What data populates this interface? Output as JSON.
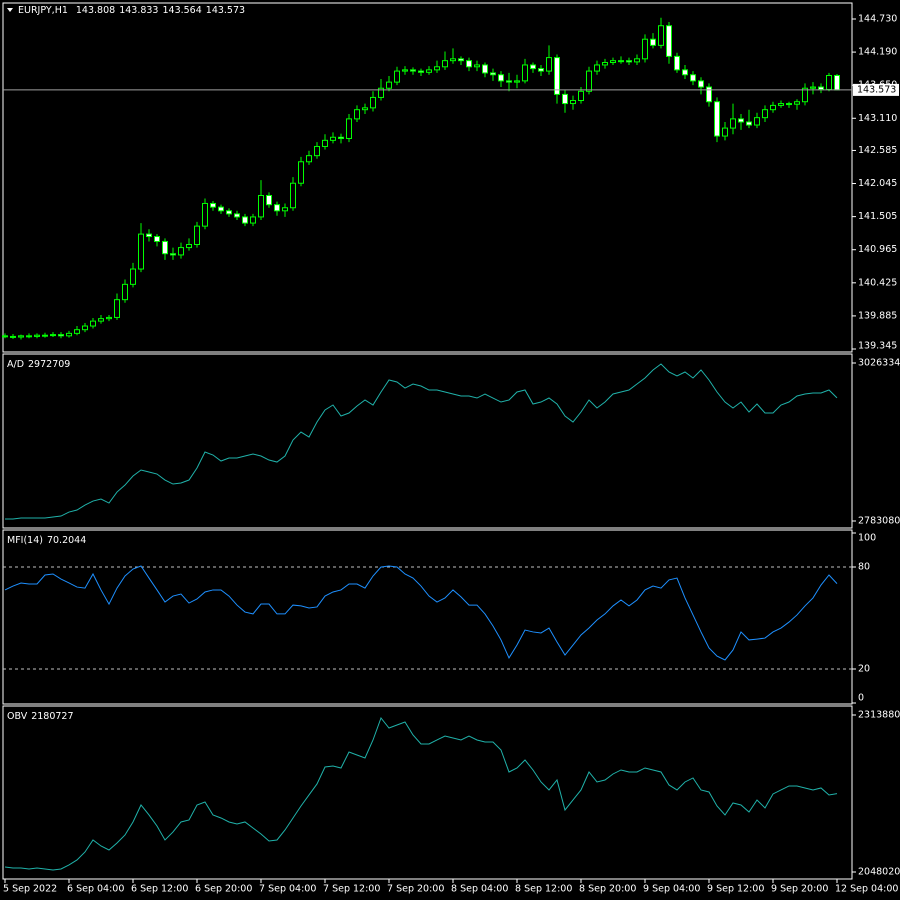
{
  "chart_data": [
    {
      "type": "candlestick",
      "title": "EURJPY,H1",
      "ylim": [
        139.296,
        144.991
      ],
      "yticks": [
        {
          "value": 144.73,
          "label": "144.730"
        },
        {
          "value": 144.19,
          "label": "144.190"
        },
        {
          "value": 143.65,
          "label": "143.650"
        },
        {
          "value": 143.11,
          "label": "143.110"
        },
        {
          "value": 142.585,
          "label": "142.585"
        },
        {
          "value": 142.045,
          "label": "142.045"
        },
        {
          "value": 141.505,
          "label": "141.505"
        },
        {
          "value": 140.965,
          "label": "140.965"
        },
        {
          "value": 140.425,
          "label": "140.425"
        },
        {
          "value": 139.885,
          "label": "139.885"
        },
        {
          "value": 139.345,
          "label": "139.345"
        }
      ],
      "color": "#00ff00",
      "bull_fill": "#000000",
      "bear_fill": "#ffffff",
      "price_line_color": "#a0a0a0",
      "categories": [
        "5 Sep 2022",
        null,
        null,
        null,
        null,
        null,
        null,
        null,
        "6 Sep 04:00",
        null,
        null,
        null,
        null,
        null,
        null,
        null,
        "6 Sep 12:00",
        null,
        null,
        null,
        null,
        null,
        null,
        null,
        "6 Sep 20:00",
        null,
        null,
        null,
        null,
        null,
        null,
        null,
        "7 Sep 04:00",
        null,
        null,
        null,
        null,
        null,
        null,
        null,
        "7 Sep 12:00",
        null,
        null,
        null,
        null,
        null,
        null,
        null,
        "7 Sep 20:00",
        null,
        null,
        null,
        null,
        null,
        null,
        null,
        "8 Sep 04:00",
        null,
        null,
        null,
        null,
        null,
        null,
        null,
        "8 Sep 12:00",
        null,
        null,
        null,
        null,
        null,
        null,
        null,
        "8 Sep 20:00",
        null,
        null,
        null,
        null,
        null,
        null,
        null,
        "9 Sep 04:00",
        null,
        null,
        null,
        null,
        null,
        null,
        null,
        "9 Sep 12:00",
        null,
        null,
        null,
        null,
        null,
        null,
        null,
        "9 Sep 20:00",
        null,
        null,
        null,
        null,
        null,
        null,
        null,
        "12 Sep 04:00"
      ],
      "candles": [
        [
          139.56,
          139.6,
          139.52,
          139.55
        ],
        [
          139.55,
          139.59,
          139.51,
          139.54
        ],
        [
          139.54,
          139.58,
          139.5,
          139.56
        ],
        [
          139.56,
          139.6,
          139.52,
          139.55
        ],
        [
          139.55,
          139.6,
          139.52,
          139.57
        ],
        [
          139.57,
          139.61,
          139.53,
          139.57
        ],
        [
          139.57,
          139.62,
          139.54,
          139.58
        ],
        [
          139.58,
          139.62,
          139.52,
          139.56
        ],
        [
          139.56,
          139.64,
          139.53,
          139.6
        ],
        [
          139.6,
          139.72,
          139.57,
          139.66
        ],
        [
          139.66,
          139.77,
          139.62,
          139.72
        ],
        [
          139.72,
          139.85,
          139.68,
          139.8
        ],
        [
          139.8,
          139.9,
          139.76,
          139.84
        ],
        [
          139.84,
          139.9,
          139.8,
          139.86
        ],
        [
          139.86,
          140.25,
          139.82,
          140.15
        ],
        [
          140.15,
          140.48,
          140.1,
          140.4
        ],
        [
          140.4,
          140.75,
          140.35,
          140.65
        ],
        [
          140.65,
          141.4,
          140.6,
          141.22
        ],
        [
          141.22,
          141.3,
          141.1,
          141.18
        ],
        [
          141.18,
          141.22,
          141.02,
          141.1
        ],
        [
          141.1,
          141.15,
          140.8,
          140.9
        ],
        [
          140.9,
          141.0,
          140.8,
          140.88
        ],
        [
          140.88,
          141.08,
          140.82,
          141.0
        ],
        [
          141.0,
          141.15,
          140.95,
          141.05
        ],
        [
          141.05,
          141.42,
          141.0,
          141.35
        ],
        [
          141.35,
          141.8,
          141.3,
          141.72
        ],
        [
          141.72,
          141.76,
          141.6,
          141.66
        ],
        [
          141.66,
          141.7,
          141.55,
          141.6
        ],
        [
          141.6,
          141.64,
          141.5,
          141.55
        ],
        [
          141.55,
          141.6,
          141.45,
          141.5
        ],
        [
          141.5,
          141.55,
          141.35,
          141.4
        ],
        [
          141.4,
          141.55,
          141.35,
          141.5
        ],
        [
          141.5,
          142.1,
          141.45,
          141.85
        ],
        [
          141.85,
          141.9,
          141.65,
          141.7
        ],
        [
          141.7,
          141.75,
          141.52,
          141.6
        ],
        [
          141.6,
          141.72,
          141.5,
          141.65
        ],
        [
          141.65,
          142.15,
          141.6,
          142.05
        ],
        [
          142.05,
          142.48,
          142.0,
          142.4
        ],
        [
          142.4,
          142.58,
          142.35,
          142.5
        ],
        [
          142.5,
          142.72,
          142.45,
          142.65
        ],
        [
          142.65,
          142.85,
          142.6,
          142.75
        ],
        [
          142.75,
          142.88,
          142.7,
          142.8
        ],
        [
          142.8,
          142.86,
          142.7,
          142.78
        ],
        [
          142.78,
          143.18,
          142.72,
          143.1
        ],
        [
          143.1,
          143.32,
          143.05,
          143.25
        ],
        [
          143.25,
          143.35,
          143.18,
          143.28
        ],
        [
          143.28,
          143.55,
          143.22,
          143.45
        ],
        [
          143.45,
          143.75,
          143.4,
          143.6
        ],
        [
          143.6,
          143.8,
          143.55,
          143.7
        ],
        [
          143.7,
          143.95,
          143.65,
          143.88
        ],
        [
          143.88,
          143.96,
          143.82,
          143.9
        ],
        [
          143.9,
          143.94,
          143.82,
          143.88
        ],
        [
          143.88,
          143.92,
          143.8,
          143.86
        ],
        [
          143.86,
          143.96,
          143.82,
          143.9
        ],
        [
          143.9,
          144.05,
          143.85,
          143.95
        ],
        [
          143.95,
          144.2,
          143.9,
          144.05
        ],
        [
          144.05,
          144.25,
          144.0,
          144.08
        ],
        [
          144.08,
          144.12,
          143.98,
          144.05
        ],
        [
          144.05,
          144.1,
          143.88,
          143.95
        ],
        [
          143.95,
          144.05,
          143.88,
          143.98
        ],
        [
          143.98,
          144.02,
          143.78,
          143.85
        ],
        [
          143.85,
          143.92,
          143.72,
          143.82
        ],
        [
          143.82,
          143.88,
          143.62,
          143.72
        ],
        [
          143.72,
          143.85,
          143.55,
          143.7
        ],
        [
          143.7,
          143.82,
          143.6,
          143.72
        ],
        [
          143.72,
          144.08,
          143.68,
          143.98
        ],
        [
          143.98,
          144.02,
          143.85,
          143.92
        ],
        [
          143.92,
          143.98,
          143.8,
          143.88
        ],
        [
          143.88,
          144.3,
          143.82,
          144.1
        ],
        [
          144.1,
          144.15,
          143.35,
          143.5
        ],
        [
          143.5,
          143.58,
          143.2,
          143.35
        ],
        [
          143.35,
          143.48,
          143.25,
          143.4
        ],
        [
          143.4,
          143.62,
          143.35,
          143.55
        ],
        [
          143.55,
          143.95,
          143.5,
          143.88
        ],
        [
          143.88,
          144.05,
          143.82,
          143.98
        ],
        [
          143.98,
          144.08,
          143.92,
          144.02
        ],
        [
          144.02,
          144.1,
          143.98,
          144.05
        ],
        [
          144.05,
          144.12,
          144.0,
          144.05
        ],
        [
          144.05,
          144.1,
          143.98,
          144.03
        ],
        [
          144.03,
          144.15,
          143.98,
          144.08
        ],
        [
          144.08,
          144.48,
          144.02,
          144.4
        ],
        [
          144.4,
          144.5,
          144.25,
          144.3
        ],
        [
          144.3,
          144.75,
          144.25,
          144.62
        ],
        [
          144.62,
          144.68,
          144.0,
          144.12
        ],
        [
          144.12,
          144.18,
          143.85,
          143.9
        ],
        [
          143.9,
          143.98,
          143.75,
          143.82
        ],
        [
          143.82,
          143.88,
          143.65,
          143.72
        ],
        [
          143.72,
          143.78,
          143.5,
          143.62
        ],
        [
          143.62,
          143.68,
          143.3,
          143.38
        ],
        [
          143.38,
          143.45,
          142.72,
          142.82
        ],
        [
          142.82,
          143.05,
          142.75,
          142.95
        ],
        [
          142.95,
          143.35,
          142.85,
          143.1
        ],
        [
          143.1,
          143.18,
          142.92,
          143.05
        ],
        [
          143.05,
          143.25,
          142.95,
          143.0
        ],
        [
          143.0,
          143.2,
          142.95,
          143.12
        ],
        [
          143.12,
          143.32,
          143.05,
          143.25
        ],
        [
          143.25,
          143.38,
          143.2,
          143.32
        ],
        [
          143.32,
          143.4,
          143.28,
          143.35
        ],
        [
          143.35,
          143.38,
          143.28,
          143.34
        ],
        [
          143.34,
          143.42,
          143.25,
          143.38
        ],
        [
          143.38,
          143.68,
          143.32,
          143.6
        ],
        [
          143.6,
          143.7,
          143.5,
          143.62
        ],
        [
          143.62,
          143.68,
          143.52,
          143.58
        ],
        [
          143.58,
          143.85,
          143.55,
          143.808
        ],
        [
          143.808,
          143.833,
          143.564,
          143.573
        ]
      ]
    },
    {
      "type": "line",
      "title": "A/D",
      "color": "#20b2aa",
      "ylim": [
        2783080,
        3026334
      ],
      "yticks": [
        3026334,
        2783080
      ],
      "values": [
        2786094,
        2786094,
        2787634,
        2787634,
        2787634,
        2787634,
        2789174,
        2790714,
        2796874,
        2799954,
        2807654,
        2813814,
        2816894,
        2810734,
        2827674,
        2838454,
        2852314,
        2861554,
        2858474,
        2855394,
        2846154,
        2839994,
        2841534,
        2846154,
        2864634,
        2889274,
        2884654,
        2875414,
        2880034,
        2880034,
        2883114,
        2886194,
        2883114,
        2876954,
        2873874,
        2883114,
        2907754,
        2920074,
        2912374,
        2935474,
        2953954,
        2961654,
        2944714,
        2949334,
        2960114,
        2969354,
        2961654,
        2981674,
        3000154,
        2997074,
        2987834,
        2993994,
        2990914,
        2984754,
        2984754,
        2981674,
        2978594,
        2975514,
        2975514,
        2972434,
        2978594,
        2972434,
        2966274,
        2969354,
        2981674,
        2984754,
        2963194,
        2966274,
        2972434,
        2963194,
        2944714,
        2935474,
        2950874,
        2969354,
        2957034,
        2966274,
        2978594,
        2981674,
        2984754,
        2993994,
        3003234,
        3015554,
        3024794,
        3012474,
        3006314,
        3012474,
        3003234,
        3015554,
        3000154,
        2981674,
        2966274,
        2957034,
        2966274,
        2950874,
        2963194,
        2949334,
        2949334,
        2961654,
        2966274,
        2975514,
        2978594,
        2980134,
        2980134,
        2984754,
        2972709
      ]
    },
    {
      "type": "line",
      "title": "MFI(14)",
      "color": "#1e90ff",
      "ylim": [
        0,
        100
      ],
      "yticks": [
        100,
        80,
        20,
        0
      ],
      "levels": [
        80,
        20
      ],
      "values": [
        66.5,
        68.8,
        70.6,
        70.0,
        70.0,
        75.3,
        75.9,
        72.9,
        70.6,
        68.2,
        67.6,
        75.9,
        66.5,
        58.2,
        67.6,
        74.7,
        78.8,
        80.6,
        73.5,
        66.5,
        59.4,
        62.9,
        64.1,
        58.8,
        61.2,
        65.3,
        66.5,
        66.5,
        62.9,
        57.6,
        53.5,
        52.4,
        58.2,
        58.2,
        52.4,
        52.4,
        57.6,
        57.1,
        55.9,
        56.5,
        62.9,
        65.3,
        66.5,
        70.0,
        70.0,
        67.6,
        74.7,
        80.0,
        80.6,
        80.0,
        75.9,
        73.5,
        68.8,
        62.9,
        59.4,
        61.8,
        66.5,
        62.4,
        57.6,
        57.6,
        52.4,
        45.3,
        37.1,
        26.5,
        34.1,
        42.9,
        41.8,
        41.2,
        44.1,
        35.9,
        28.2,
        34.1,
        40.0,
        44.1,
        48.8,
        52.4,
        57.1,
        60.6,
        57.1,
        60.6,
        66.5,
        68.8,
        67.6,
        72.4,
        73.5,
        61.8,
        51.8,
        41.8,
        32.4,
        27.6,
        25.3,
        31.2,
        41.8,
        37.1,
        37.6,
        38.2,
        41.8,
        44.1,
        47.6,
        51.8,
        57.1,
        61.8,
        69.4,
        75.3,
        70.2044
      ]
    },
    {
      "type": "line",
      "title": "OBV",
      "color": "#20b2aa",
      "ylim": [
        2048020,
        2313880
      ],
      "yticks": [
        2313880,
        2048020
      ],
      "values": [
        2056544,
        2054851,
        2054851,
        2053158,
        2054851,
        2053158,
        2051465,
        2053158,
        2059930,
        2068395,
        2081939,
        2102255,
        2092097,
        2085325,
        2097176,
        2110720,
        2132729,
        2161510,
        2144580,
        2125957,
        2102255,
        2115799,
        2132729,
        2136115,
        2161510,
        2166589,
        2144580,
        2139501,
        2132729,
        2129343,
        2132729,
        2122571,
        2112413,
        2100562,
        2102255,
        2119185,
        2139501,
        2159817,
        2178440,
        2197063,
        2225844,
        2227537,
        2224151,
        2251239,
        2246160,
        2241081,
        2271555,
        2308801,
        2291871,
        2296950,
        2302029,
        2280020,
        2264783,
        2264783,
        2271555,
        2278327,
        2274941,
        2271555,
        2278327,
        2271555,
        2268169,
        2268169,
        2254625,
        2217379,
        2224151,
        2237695,
        2220765,
        2200449,
        2186905,
        2203835,
        2153045,
        2169975,
        2186905,
        2217379,
        2200449,
        2203835,
        2213993,
        2220765,
        2217379,
        2217379,
        2224151,
        2220765,
        2217379,
        2195370,
        2186905,
        2200449,
        2207221,
        2186905,
        2183519,
        2159817,
        2144580,
        2164896,
        2161510,
        2149659,
        2169975,
        2156431,
        2180133,
        2186905,
        2193677,
        2193677,
        2190291,
        2186905,
        2190291,
        2178440,
        2180727
      ]
    }
  ]
}
